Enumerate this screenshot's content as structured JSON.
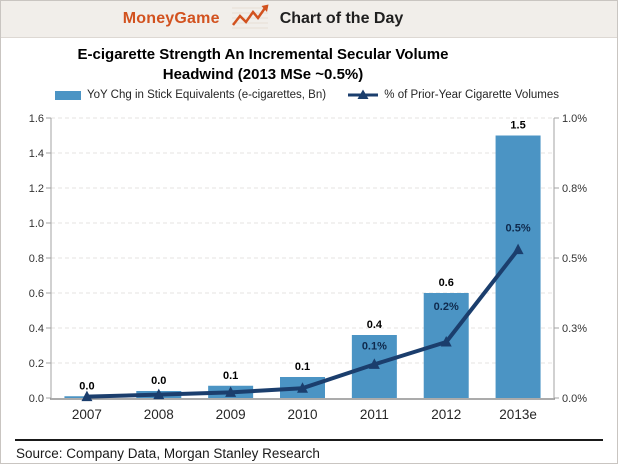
{
  "header": {
    "brand": "MoneyGame",
    "title": "Chart of the Day",
    "icon": "line-chart-arrow-icon"
  },
  "title": {
    "line1": "E-cigarette Strength An Incremental Secular Volume",
    "line2": "Headwind (2013 MSe ~0.5%)"
  },
  "footer": {
    "source": "Source: Company Data, Morgan Stanley Research"
  },
  "colors": {
    "accent_orange": "#d2521f",
    "bar_blue": "#4b94c4",
    "line_navy": "#1b3e6d",
    "header_bg": "#f1eeea"
  },
  "chart_data": {
    "type": "bar",
    "subtype": "combo-bar-line-dual-axis",
    "title": "E-cigarette Strength An Incremental Secular Volume Headwind (2013 MSe ~0.5%)",
    "categories": [
      "2007",
      "2008",
      "2009",
      "2010",
      "2011",
      "2012",
      "2013e"
    ],
    "series": [
      {
        "name": "YoY Chg in Stick Equivalents (e-cigarettes, Bn)",
        "type": "bar",
        "axis": "left",
        "values": [
          0.01,
          0.04,
          0.07,
          0.12,
          0.36,
          0.6,
          1.5
        ],
        "labels": [
          "0.0",
          "0.0",
          "0.1",
          "0.1",
          "0.4",
          "0.6",
          "1.5"
        ],
        "color": "#4b94c4"
      },
      {
        "name": "% of Prior-Year Cigarette Volumes",
        "type": "line",
        "axis": "right",
        "values": [
          0.005,
          0.012,
          0.02,
          0.035,
          0.12,
          0.2,
          0.53
        ],
        "labels": [
          "",
          "",
          "",
          "",
          "0.1%",
          "0.2%",
          "0.5%"
        ],
        "color": "#1b3e6d"
      }
    ],
    "left_axis": {
      "min": 0,
      "max": 1.6,
      "ticks": [
        0,
        0.2,
        0.4,
        0.6,
        0.8,
        1.0,
        1.2,
        1.4,
        1.6
      ],
      "labels": [
        "0.0",
        "0.2",
        "0.4",
        "0.6",
        "0.8",
        "1.0",
        "1.2",
        "1.4",
        "1.6"
      ]
    },
    "right_axis": {
      "min": 0,
      "max": 1.0,
      "ticks": [
        0,
        0.25,
        0.5,
        0.75,
        1.0
      ],
      "labels": [
        "0.0%",
        "0.3%",
        "0.5%",
        "0.8%",
        "1.0%"
      ]
    },
    "grid": "horizontal-dashed",
    "legend_position": "top"
  }
}
